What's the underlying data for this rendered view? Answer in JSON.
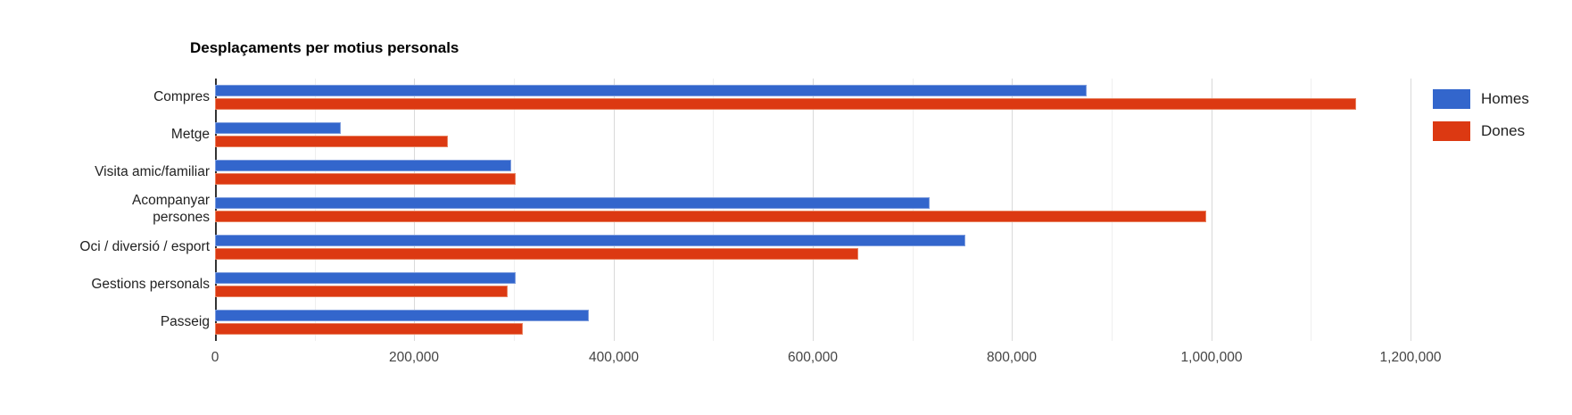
{
  "chart_data": {
    "type": "bar",
    "orientation": "horizontal",
    "title": "Desplaçaments per motius personals",
    "categories": [
      "Compres",
      "Metge",
      "Visita amic/familiar",
      "Acompanyar persones",
      "Oci / diversió / esport",
      "Gestions personals",
      "Passeig"
    ],
    "category_display": [
      "Compres",
      "Metge",
      "Visita amic/familiar",
      "Acompanyar\npersones",
      "Oci / diversió / esport",
      "Gestions personals",
      "Passeig"
    ],
    "series": [
      {
        "name": "Homes",
        "color": "#3366cc",
        "values": [
          875000,
          126000,
          297000,
          717000,
          753000,
          302000,
          375000
        ]
      },
      {
        "name": "Dones",
        "color": "#dc3912",
        "values": [
          1145000,
          234000,
          302000,
          995000,
          646000,
          294000,
          309000
        ]
      }
    ],
    "x_axis": {
      "min": 0,
      "max": 1200000,
      "major_tick_step": 200000,
      "minor_gridline_step": 100000,
      "tick_labels": [
        "0",
        "200,000",
        "400,000",
        "600,000",
        "800,000",
        "1,000,000",
        "1,200,000"
      ]
    },
    "legend": {
      "position": "right-top",
      "entries": [
        "Homes",
        "Dones"
      ]
    },
    "grid": true,
    "background": "#ffffff"
  }
}
